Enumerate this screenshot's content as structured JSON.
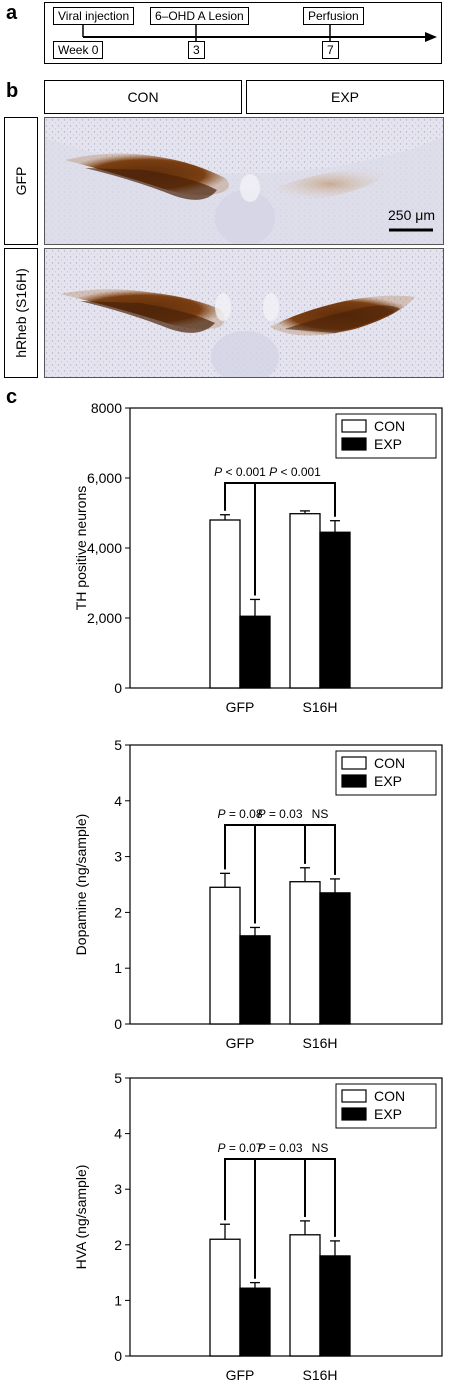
{
  "panel_a": {
    "letter": "a",
    "labels": {
      "viral_injection": "Viral injection",
      "lesion": "6–OHD A Lesion",
      "perfusion": "Perfusion",
      "week0": "Week 0",
      "week3": "3",
      "week7": "7"
    }
  },
  "panel_b": {
    "letter": "b",
    "col_con": "CON",
    "col_exp": "EXP",
    "row_gfp": "GFP",
    "row_s16h": "hRheb (S16H)",
    "scale_bar": "250 μm"
  },
  "panel_c": {
    "letter": "c"
  },
  "colors": {
    "con_fill": "#ffffff",
    "exp_fill": "#000000",
    "stain_brown": "#7a3f12",
    "tissue_bg": "#e7e6ef"
  },
  "chart_data": [
    {
      "type": "bar",
      "ylabel": "TH positive neurons",
      "xlabel": "",
      "categories": [
        "GFP",
        "S16H"
      ],
      "ylim": [
        0,
        8000
      ],
      "yticks": [
        0,
        2000,
        4000,
        6000,
        8000
      ],
      "ytick_labels": [
        "0",
        "2,000",
        "4,000",
        "6,000",
        "8000"
      ],
      "series": [
        {
          "name": "CON",
          "values": [
            4800,
            4980
          ],
          "errors": [
            150,
            80
          ]
        },
        {
          "name": "EXP",
          "values": [
            2050,
            4450
          ],
          "errors": [
            480,
            330
          ]
        }
      ],
      "legend": {
        "position": "top-right",
        "entries": [
          "CON",
          "EXP"
        ]
      },
      "annotations": [
        "P < 0.001",
        "P < 0.001"
      ]
    },
    {
      "type": "bar",
      "ylabel": "Dopamine (ng/sample)",
      "xlabel": "",
      "categories": [
        "GFP",
        "S16H"
      ],
      "ylim": [
        0,
        5
      ],
      "yticks": [
        0,
        1,
        2,
        3,
        4,
        5
      ],
      "ytick_labels": [
        "0",
        "1",
        "2",
        "3",
        "4",
        "5"
      ],
      "series": [
        {
          "name": "CON",
          "values": [
            2.45,
            2.55
          ],
          "errors": [
            0.25,
            0.25
          ]
        },
        {
          "name": "EXP",
          "values": [
            1.58,
            2.35
          ],
          "errors": [
            0.15,
            0.25
          ]
        }
      ],
      "legend": {
        "position": "top-right",
        "entries": [
          "CON",
          "EXP"
        ]
      },
      "annotations": [
        "P = 0.08",
        "P = 0.03",
        "NS"
      ]
    },
    {
      "type": "bar",
      "ylabel": "HVA (ng/sample)",
      "xlabel": "",
      "categories": [
        "GFP",
        "S16H"
      ],
      "ylim": [
        0,
        5
      ],
      "yticks": [
        0,
        1,
        2,
        3,
        4,
        5
      ],
      "ytick_labels": [
        "0",
        "1",
        "2",
        "3",
        "4",
        "5"
      ],
      "series": [
        {
          "name": "CON",
          "values": [
            2.1,
            2.18
          ],
          "errors": [
            0.27,
            0.25
          ]
        },
        {
          "name": "EXP",
          "values": [
            1.22,
            1.8
          ],
          "errors": [
            0.1,
            0.27
          ]
        }
      ],
      "legend": {
        "position": "top-right",
        "entries": [
          "CON",
          "EXP"
        ]
      },
      "annotations": [
        "P = 0.07",
        "P = 0.03",
        "NS"
      ]
    }
  ]
}
